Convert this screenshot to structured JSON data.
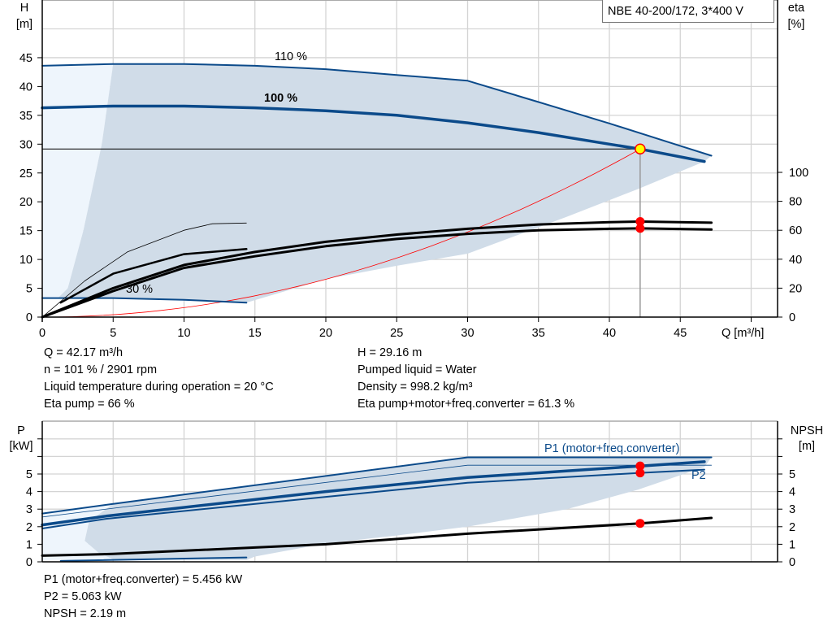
{
  "title": "NBE 40-200/172, 3*400 V",
  "colors": {
    "curve_blue": "#0b4a8a",
    "area": "#d0dce8",
    "area_light": "#eef5fc",
    "grid": "#d4d4d4",
    "duty_red": "#ff0000",
    "duty_yellow": "#ffff00"
  },
  "info_main": {
    "left": [
      "Q = 42.17 m³/h",
      "n = 101 % / 2901 rpm",
      "Liquid temperature during operation = 20 °C",
      "Eta pump = 66 %"
    ],
    "right": [
      "H = 29.16 m",
      "Pumped liquid = Water",
      "Density = 998.2 kg/m³",
      "Eta pump+motor+freq.converter = 61.3 %"
    ]
  },
  "info_power": [
    "P1 (motor+freq.converter) = 5.456 kW",
    "P2 = 5.063 kW",
    "NPSH = 2.19 m"
  ],
  "chart_data": [
    {
      "type": "line",
      "xlabel": "Q [m³/h]",
      "ylabel": [
        "H",
        "[m]"
      ],
      "y2label": [
        "eta",
        "[%]"
      ],
      "xlim": [
        0,
        52
      ],
      "ylim": [
        0,
        50
      ],
      "y2lim": [
        0,
        100
      ],
      "xticks": [
        0,
        5,
        10,
        15,
        20,
        25,
        30,
        35,
        40,
        45
      ],
      "yticks": [
        0,
        5,
        10,
        15,
        20,
        25,
        30,
        35,
        40,
        45
      ],
      "y2ticks": [
        0,
        20,
        40,
        60,
        80,
        100
      ],
      "grid": true,
      "curve_labels": [
        {
          "text": "110 %",
          "bold": false
        },
        {
          "text": "100 %",
          "bold": true
        },
        {
          "text": "30 %",
          "bold": false
        }
      ],
      "series": [
        {
          "axis": "H",
          "style": "blue",
          "width": 2,
          "points": [
            [
              0,
              43.6
            ],
            [
              5,
              43.9
            ],
            [
              10,
              43.9
            ],
            [
              15,
              43.6
            ],
            [
              20,
              43.0
            ],
            [
              25,
              42.0
            ],
            [
              30,
              41.0
            ],
            [
              35,
              37.3
            ],
            [
              40,
              33.6
            ],
            [
              45,
              29.7
            ],
            [
              47.2,
              28.0
            ]
          ]
        },
        {
          "axis": "H",
          "style": "blue",
          "width": 3.5,
          "points": [
            [
              0,
              36.3
            ],
            [
              5,
              36.6
            ],
            [
              10,
              36.6
            ],
            [
              15,
              36.3
            ],
            [
              20,
              35.8
            ],
            [
              25,
              35.0
            ],
            [
              30,
              33.7
            ],
            [
              35,
              32.0
            ],
            [
              40,
              30.0
            ],
            [
              42.17,
              29.16
            ],
            [
              46.7,
              27.0
            ]
          ]
        },
        {
          "axis": "H",
          "style": "blue",
          "width": 2,
          "points": [
            [
              0,
              3.3
            ],
            [
              5,
              3.3
            ],
            [
              10,
              3.0
            ],
            [
              14.4,
              2.5
            ]
          ]
        },
        {
          "axis": "eta",
          "style": "black",
          "width": 3,
          "points": [
            [
              0,
              0
            ],
            [
              5,
              20
            ],
            [
              10,
              36
            ],
            [
              15,
              45
            ],
            [
              20,
              52
            ],
            [
              25,
              57
            ],
            [
              30,
              61
            ],
            [
              35,
              64
            ],
            [
              40,
              65.6
            ],
            [
              42.17,
              66
            ],
            [
              47.2,
              65.2
            ]
          ]
        },
        {
          "axis": "eta",
          "style": "black",
          "width": 3,
          "points": [
            [
              0,
              0
            ],
            [
              5,
              18
            ],
            [
              10,
              34
            ],
            [
              15,
              42
            ],
            [
              20,
              49
            ],
            [
              25,
              54
            ],
            [
              30,
              57.5
            ],
            [
              35,
              60
            ],
            [
              40,
              61
            ],
            [
              42.17,
              61.3
            ],
            [
              47.2,
              60.5
            ]
          ]
        },
        {
          "axis": "eta",
          "style": "black",
          "width": 0.8,
          "points": [
            [
              0,
              0
            ],
            [
              3,
              25
            ],
            [
              6,
              45
            ],
            [
              10,
              60
            ],
            [
              12,
              64.5
            ],
            [
              14.4,
              65
            ]
          ]
        },
        {
          "axis": "eta",
          "style": "black",
          "width": 2.5,
          "points": [
            [
              1.3,
              10
            ],
            [
              5,
              30
            ],
            [
              10,
              43.5
            ],
            [
              14.4,
              47
            ]
          ]
        }
      ],
      "system_curve": {
        "type": "quadratic",
        "Q": 42.17,
        "H": 29.16
      },
      "duty_point": {
        "Q": 42.17,
        "H": 29.16,
        "eta_pump": 66,
        "eta_total": 61.3
      },
      "operating_area": [
        [
          5,
          43.9
        ],
        [
          10,
          43.9
        ],
        [
          15,
          43.6
        ],
        [
          20,
          43.0
        ],
        [
          25,
          42.0
        ],
        [
          30,
          41.0
        ],
        [
          35,
          37.3
        ],
        [
          40,
          33.6
        ],
        [
          45,
          29.7
        ],
        [
          47.2,
          28.0
        ],
        [
          46.7,
          27.0
        ],
        [
          42,
          22.2
        ],
        [
          37,
          17.4
        ],
        [
          30,
          11.0
        ],
        [
          25,
          8.9
        ],
        [
          20,
          6.6
        ],
        [
          14.4,
          2.5
        ],
        [
          10,
          3.0
        ],
        [
          5,
          3.3
        ],
        [
          1.1,
          3.3
        ],
        [
          1.8,
          5
        ],
        [
          2.9,
          15
        ],
        [
          4.2,
          30
        ],
        [
          5,
          43.9
        ]
      ],
      "light_area": [
        [
          0,
          3.3
        ],
        [
          0,
          43.6
        ],
        [
          5,
          43.9
        ],
        [
          4.2,
          30
        ],
        [
          2.9,
          15
        ],
        [
          1.8,
          5
        ],
        [
          1.1,
          3.3
        ]
      ]
    },
    {
      "type": "line",
      "ylabel": [
        "P",
        "[kW]"
      ],
      "y2label": [
        "NPSH",
        "[m]"
      ],
      "xlim": [
        0,
        52
      ],
      "ylim": [
        0,
        8
      ],
      "y2lim": [
        0,
        8
      ],
      "yticks": [
        0,
        1,
        2,
        3,
        4,
        5
      ],
      "y2ticks": [
        0,
        1,
        2,
        3,
        4,
        5
      ],
      "grid": true,
      "series_labels": [
        "P1 (motor+freq.converter)",
        "P2"
      ],
      "series": [
        {
          "style": "blue",
          "width": 2,
          "points": [
            [
              0,
              2.75
            ],
            [
              5,
              3.3
            ],
            [
              30,
              5.95
            ],
            [
              47.2,
              5.95
            ]
          ]
        },
        {
          "style": "blue",
          "width": 0.8,
          "points": [
            [
              0,
              2.55
            ],
            [
              5,
              3.05
            ],
            [
              30,
              5.5
            ],
            [
              47.2,
              5.5
            ]
          ]
        },
        {
          "style": "blue",
          "width": 3.5,
          "points": [
            [
              0,
              2.1
            ],
            [
              4.5,
              2.6
            ],
            [
              20,
              4.0
            ],
            [
              30,
              4.8
            ],
            [
              42.17,
              5.456
            ],
            [
              46.7,
              5.7
            ]
          ]
        },
        {
          "style": "blue",
          "width": 2,
          "points": [
            [
              0,
              1.9
            ],
            [
              4.5,
              2.45
            ],
            [
              20,
              3.7
            ],
            [
              30,
              4.5
            ],
            [
              42.17,
              5.063
            ],
            [
              46.7,
              5.25
            ]
          ]
        },
        {
          "style": "black",
          "width": 3,
          "points": [
            [
              0,
              0.35
            ],
            [
              5,
              0.45
            ],
            [
              20,
              1.0
            ],
            [
              30,
              1.6
            ],
            [
              42.17,
              2.19
            ],
            [
              47.2,
              2.5
            ]
          ]
        },
        {
          "style": "blue",
          "width": 2,
          "points": [
            [
              1.3,
              0.05
            ],
            [
              14.4,
              0.25
            ]
          ]
        }
      ],
      "duty_points": [
        5.456,
        5.063,
        2.19
      ],
      "operating_area": [
        [
          5,
          3.3
        ],
        [
          30,
          5.95
        ],
        [
          47.2,
          5.95
        ],
        [
          46.7,
          5.4
        ],
        [
          42,
          4.1
        ],
        [
          37,
          3.0
        ],
        [
          30,
          2.0
        ],
        [
          25,
          1.5
        ],
        [
          20,
          1.05
        ],
        [
          15,
          0.3
        ],
        [
          14.4,
          0.1
        ],
        [
          5,
          0.15
        ],
        [
          4,
          0.5
        ],
        [
          3,
          1.2
        ],
        [
          3.3,
          2.3
        ],
        [
          5,
          3.3
        ]
      ],
      "light_area": [
        [
          0,
          0.1
        ],
        [
          0,
          2.75
        ],
        [
          5,
          3.3
        ],
        [
          3.3,
          2.3
        ],
        [
          3,
          1.2
        ],
        [
          4,
          0.5
        ],
        [
          5,
          0.15
        ]
      ]
    }
  ]
}
